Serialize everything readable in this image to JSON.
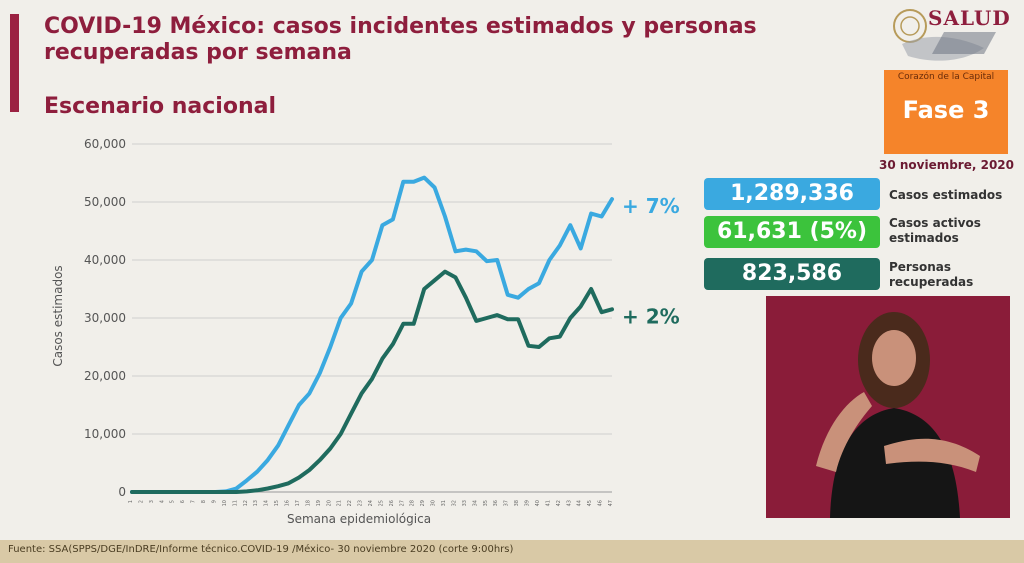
{
  "header": {
    "title": "COVID-19 México: casos incidentes estimados y personas recuperadas por semana",
    "subtitle": "Escenario nacional"
  },
  "branding": {
    "logo_text": "SALUD",
    "motto": "Corazón de la Capital",
    "phase_label": "Fase 3",
    "date": "30 noviembre, 2020"
  },
  "stats": [
    {
      "value": "1,289,336",
      "label": "Casos estimados",
      "color": "#3aa9e0"
    },
    {
      "value": "61,631 (5%)",
      "label": "Casos activos estimados",
      "color": "#3cc33c"
    },
    {
      "value": "823,586",
      "label": "Personas recuperadas",
      "color": "#1f6b5e"
    }
  ],
  "chart_data": {
    "type": "line",
    "title": "",
    "xlabel": "Semana epidemiológica",
    "ylabel": "Casos estimados",
    "ylim": [
      0,
      60000
    ],
    "yticks": [
      "0",
      "10,000",
      "20,000",
      "30,000",
      "40,000",
      "50,000",
      "60,000"
    ],
    "grid": true,
    "categories": [
      "1",
      "2",
      "3",
      "4",
      "5",
      "6",
      "7",
      "8",
      "9",
      "10",
      "11",
      "12",
      "13",
      "14",
      "15",
      "16",
      "17",
      "18",
      "19",
      "20",
      "21",
      "22",
      "23",
      "24",
      "25",
      "26",
      "27",
      "28",
      "29",
      "30",
      "31",
      "32",
      "33",
      "34",
      "35",
      "36",
      "37",
      "38",
      "39",
      "40",
      "41",
      "42",
      "43",
      "44",
      "45",
      "46",
      "47"
    ],
    "series": [
      {
        "color": "#3aa9e0",
        "end_label": "+ 7%",
        "values": [
          0,
          0,
          0,
          0,
          0,
          0,
          0,
          0,
          0,
          100,
          600,
          2000,
          3500,
          5500,
          8000,
          11500,
          15000,
          17000,
          20500,
          25000,
          30000,
          32500,
          38000,
          40000,
          46000,
          47000,
          53500,
          53500,
          54200,
          52500,
          47500,
          41500,
          41800,
          41500,
          39800,
          40000,
          34000,
          33500,
          35000,
          36000,
          40000,
          42500,
          46000,
          42000,
          48000,
          47500,
          50500
        ]
      },
      {
        "color": "#1f6b5e",
        "end_label": "+ 2%",
        "values": [
          0,
          0,
          0,
          0,
          0,
          0,
          0,
          0,
          0,
          0,
          0,
          100,
          300,
          600,
          1000,
          1500,
          2500,
          3800,
          5500,
          7500,
          10000,
          13500,
          17000,
          19500,
          23000,
          25500,
          29000,
          29000,
          35000,
          36500,
          38000,
          37000,
          33500,
          29500,
          30000,
          30500,
          29800,
          29800,
          25200,
          25000,
          26500,
          26800,
          30000,
          32000,
          35000,
          31000,
          31500
        ]
      }
    ]
  },
  "footer": {
    "source": "Fuente: SSA(SPPS/DGE/InDRE/Informe técnico.COVID-19 /México- 30 noviembre 2020 (corte 9:00hrs)"
  }
}
